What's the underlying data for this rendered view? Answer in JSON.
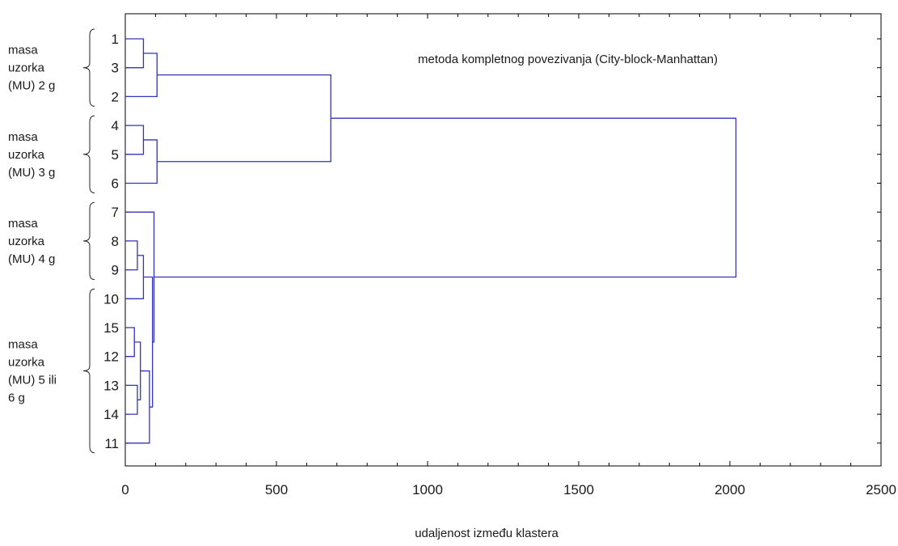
{
  "chart_data": {
    "type": "dendrogram",
    "title": "metoda kompletnog povezivanja (City-block-Manhattan)",
    "xlabel": "udaljenost između klastera",
    "ylabel": "",
    "xlim": [
      0,
      2500
    ],
    "x_ticks": [
      0,
      500,
      1000,
      1500,
      2000,
      2500
    ],
    "orientation": "horizontal",
    "line_color": "#3333bb",
    "leaf_order": [
      "1",
      "3",
      "2",
      "4",
      "5",
      "6",
      "7",
      "8",
      "9",
      "10",
      "15",
      "12",
      "13",
      "14",
      "11"
    ],
    "merges": [
      {
        "id": "A",
        "children": [
          "1",
          "3"
        ],
        "height": 60
      },
      {
        "id": "B",
        "children": [
          "A",
          "2"
        ],
        "height": 105
      },
      {
        "id": "C",
        "children": [
          "4",
          "5"
        ],
        "height": 60
      },
      {
        "id": "D",
        "children": [
          "C",
          "6"
        ],
        "height": 105
      },
      {
        "id": "E",
        "children": [
          "B",
          "D"
        ],
        "height": 680
      },
      {
        "id": "F",
        "children": [
          "8",
          "9"
        ],
        "height": 40
      },
      {
        "id": "G",
        "children": [
          "F",
          "10"
        ],
        "height": 60
      },
      {
        "id": "H",
        "children": [
          "15",
          "12"
        ],
        "height": 30
      },
      {
        "id": "I",
        "children": [
          "13",
          "14"
        ],
        "height": 40
      },
      {
        "id": "J",
        "children": [
          "H",
          "I"
        ],
        "height": 50
      },
      {
        "id": "K",
        "children": [
          "J",
          "11"
        ],
        "height": 80
      },
      {
        "id": "L",
        "children": [
          "G",
          "K"
        ],
        "height": 90
      },
      {
        "id": "M",
        "children": [
          "7",
          "L"
        ],
        "height": 95
      },
      {
        "id": "N",
        "children": [
          "E",
          "M"
        ],
        "height": 2020
      }
    ],
    "groups": [
      {
        "lines": [
          "masa",
          "uzorka",
          "(MU) 2 g"
        ],
        "first_leaf": 0,
        "last_leaf": 2
      },
      {
        "lines": [
          "masa",
          "uzorka",
          "(MU) 3 g"
        ],
        "first_leaf": 3,
        "last_leaf": 5
      },
      {
        "lines": [
          "masa",
          "uzorka",
          "(MU) 4 g"
        ],
        "first_leaf": 6,
        "last_leaf": 8
      },
      {
        "lines": [
          "masa",
          "uzorka",
          "(MU) 5 ili",
          "6 g"
        ],
        "first_leaf": 9,
        "last_leaf": 14
      }
    ],
    "grid": false
  }
}
